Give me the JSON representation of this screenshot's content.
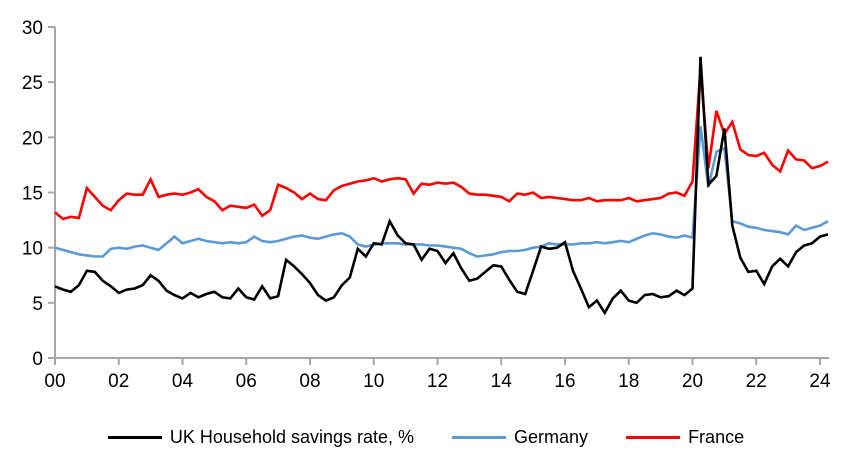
{
  "chart_data": {
    "type": "line",
    "title": "",
    "xlabel": "",
    "ylabel": "",
    "x_unit": "quarterly",
    "x_start_year": 2000,
    "x_end": "2024Q2",
    "ylim": [
      0,
      30
    ],
    "yticks": [
      0,
      5,
      10,
      15,
      20,
      25,
      30
    ],
    "xtick_labels": [
      "00",
      "02",
      "04",
      "06",
      "08",
      "10",
      "12",
      "14",
      "16",
      "18",
      "20",
      "22",
      "24"
    ],
    "grid": false,
    "legend_position": "bottom",
    "axis_color": "#A6A6A6",
    "text_color": "#000000",
    "background_color": "#FFFFFF",
    "series": [
      {
        "key": "uk",
        "name": "UK Household savings rate, %",
        "color": "#000000",
        "values": [
          6.5,
          6.2,
          6.0,
          6.6,
          7.9,
          7.8,
          7.0,
          6.5,
          5.9,
          6.2,
          6.3,
          6.6,
          7.5,
          7.0,
          6.1,
          5.7,
          5.4,
          5.9,
          5.5,
          5.8,
          6.0,
          5.5,
          5.4,
          6.3,
          5.5,
          5.3,
          6.5,
          5.4,
          5.6,
          8.9,
          8.3,
          7.6,
          6.8,
          5.7,
          5.2,
          5.5,
          6.6,
          7.3,
          9.9,
          9.2,
          10.4,
          10.3,
          12.4,
          11.1,
          10.4,
          10.3,
          8.9,
          9.9,
          9.7,
          8.6,
          9.5,
          8.1,
          7.0,
          7.2,
          7.8,
          8.4,
          8.3,
          7.1,
          6.0,
          5.8,
          7.9,
          10.1,
          9.9,
          10.0,
          10.5,
          7.9,
          6.3,
          4.6,
          5.2,
          4.1,
          5.4,
          6.1,
          5.2,
          5.0,
          5.7,
          5.8,
          5.5,
          5.6,
          6.1,
          5.7,
          6.3,
          27.3,
          15.7,
          16.5,
          20.8,
          12.0,
          9.1,
          7.8,
          7.9,
          6.7,
          8.3,
          9.0,
          8.3,
          9.6,
          10.2,
          10.4,
          11.0,
          11.2
        ]
      },
      {
        "key": "germany",
        "name": "Germany",
        "color": "#5B9BD5",
        "values": [
          10.0,
          9.8,
          9.6,
          9.4,
          9.3,
          9.2,
          9.2,
          9.9,
          10.0,
          9.9,
          10.1,
          10.2,
          10.0,
          9.8,
          10.4,
          11.0,
          10.4,
          10.6,
          10.8,
          10.6,
          10.5,
          10.4,
          10.5,
          10.4,
          10.5,
          11.0,
          10.6,
          10.5,
          10.6,
          10.8,
          11.0,
          11.1,
          10.9,
          10.8,
          11.0,
          11.2,
          11.3,
          11.0,
          10.3,
          10.1,
          10.3,
          10.4,
          10.4,
          10.4,
          10.3,
          10.3,
          10.3,
          10.2,
          10.2,
          10.1,
          10.0,
          9.9,
          9.5,
          9.2,
          9.3,
          9.4,
          9.6,
          9.7,
          9.7,
          9.8,
          10.0,
          10.1,
          10.4,
          10.3,
          10.3,
          10.3,
          10.4,
          10.4,
          10.5,
          10.4,
          10.5,
          10.6,
          10.5,
          10.8,
          11.1,
          11.3,
          11.2,
          11.0,
          10.9,
          11.1,
          10.9,
          21.0,
          15.5,
          18.7,
          19.0,
          12.4,
          12.2,
          11.9,
          11.8,
          11.6,
          11.5,
          11.4,
          11.2,
          12.0,
          11.6,
          11.8,
          12.0,
          12.4
        ]
      },
      {
        "key": "france",
        "name": "France",
        "color": "#FF0000",
        "values": [
          13.2,
          12.6,
          12.8,
          12.7,
          15.4,
          14.6,
          13.8,
          13.4,
          14.3,
          14.9,
          14.8,
          14.8,
          16.2,
          14.6,
          14.8,
          14.9,
          14.8,
          15.0,
          15.3,
          14.6,
          14.2,
          13.4,
          13.8,
          13.7,
          13.6,
          13.9,
          12.9,
          13.4,
          15.7,
          15.4,
          15.0,
          14.4,
          14.9,
          14.4,
          14.3,
          15.2,
          15.6,
          15.8,
          16.0,
          16.1,
          16.3,
          16.0,
          16.2,
          16.3,
          16.2,
          14.9,
          15.8,
          15.7,
          15.9,
          15.8,
          15.9,
          15.5,
          14.9,
          14.8,
          14.8,
          14.7,
          14.6,
          14.2,
          14.9,
          14.8,
          15.0,
          14.5,
          14.6,
          14.5,
          14.4,
          14.3,
          14.3,
          14.5,
          14.2,
          14.3,
          14.3,
          14.3,
          14.5,
          14.2,
          14.3,
          14.4,
          14.5,
          14.9,
          15.0,
          14.7,
          16.0,
          26.2,
          17.2,
          22.4,
          20.3,
          21.4,
          18.9,
          18.4,
          18.3,
          18.6,
          17.5,
          16.9,
          18.8,
          18.0,
          17.9,
          17.2,
          17.4,
          17.8
        ]
      }
    ]
  }
}
